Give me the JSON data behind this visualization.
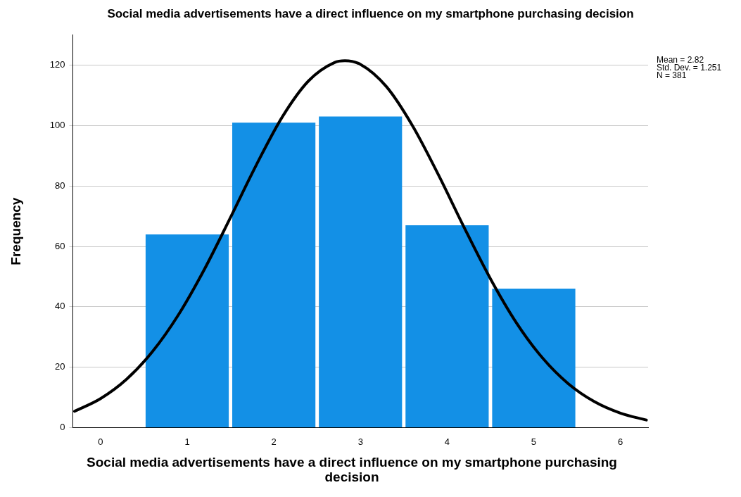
{
  "chart_data": {
    "type": "histogram",
    "title": "Social media advertisements have a direct influence on my smartphone purchasing decision",
    "xlabel": "Social media advertisements have a direct influence on my smartphone purchasing decision",
    "ylabel": "Frequency",
    "bins": [
      0.5,
      1.5,
      2.5,
      3.5,
      4.5,
      5.5
    ],
    "series": [
      {
        "color": "#1390e6",
        "values": [
          64,
          101,
          103,
          67,
          46
        ]
      },
      {
        "type": "line",
        "color": "#000000",
        "x": [
          -0.3,
          0,
          0.3,
          0.6,
          0.9,
          1.2,
          1.5,
          1.8,
          2.1,
          2.4,
          2.7,
          2.82,
          3.0,
          3.3,
          3.6,
          3.9,
          4.2,
          4.5,
          4.8,
          5.1,
          5.4,
          5.7,
          6.0,
          6.3
        ],
        "values": [
          5.4,
          9.6,
          16,
          25.2,
          37.4,
          52.5,
          69.6,
          87.1,
          103,
          114.8,
          120.9,
          121.5,
          120.3,
          112.9,
          100,
          83.7,
          66.1,
          49.3,
          34.7,
          23.1,
          14.5,
          8.6,
          4.8,
          2.5
        ]
      }
    ],
    "xlim": [
      -0.32,
      6.32
    ],
    "xticks": [
      0,
      1,
      2,
      3,
      4,
      5,
      6
    ],
    "ylim": [
      0,
      130
    ],
    "yticks": [
      0,
      20,
      40,
      60,
      80,
      100,
      120
    ],
    "grid": "y",
    "annotations": [
      "Mean = 2.82",
      "Std. Dev. = 1.251",
      "N = 381"
    ]
  }
}
